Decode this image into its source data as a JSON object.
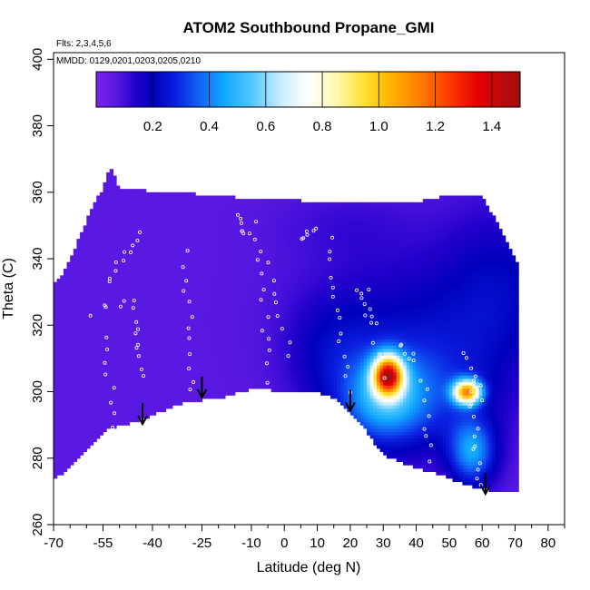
{
  "chart_data": {
    "type": "heatmap",
    "title": "ATOM2 Southbound Propane_GMI",
    "annotations": {
      "flights": "Flts: 2,3,4,5,6",
      "dates": "MMDD: 0129,0201,0203,0205,0210"
    },
    "xlabel": "Latitude (deg N)",
    "ylabel": "Theta (C)",
    "xlim": [
      -70,
      85
    ],
    "ylim": [
      260,
      402
    ],
    "x_major_ticks": [
      -70,
      -55,
      -40,
      -25,
      -10,
      0,
      10,
      20,
      30,
      40,
      50,
      60,
      70,
      80
    ],
    "x_minor_ticks": [
      -65,
      -60,
      -50,
      -45,
      -35,
      -30,
      -20,
      -15,
      -5,
      5,
      15,
      25,
      35,
      45,
      55,
      65,
      75,
      85
    ],
    "x_tick_labels": [
      "-70",
      "-55",
      "-40",
      "-25",
      "-10",
      "0",
      "10",
      "20",
      "30",
      "40",
      "50",
      "60",
      "70",
      "80"
    ],
    "y_ticks": [
      260,
      280,
      300,
      320,
      340,
      360,
      380,
      400
    ],
    "y_tick_labels": [
      "260",
      "280",
      "300",
      "320",
      "340",
      "360",
      "380",
      "400"
    ],
    "colorbar": {
      "range": [
        0,
        1.5
      ],
      "ticks": [
        0.2,
        0.4,
        0.6,
        0.8,
        1.0,
        1.2,
        1.4
      ],
      "tick_labels": [
        "0.2",
        "0.4",
        "0.6",
        "0.8",
        "1.0",
        "1.2",
        "1.4"
      ],
      "stops": [
        [
          0.0,
          "#7e22ee"
        ],
        [
          0.07,
          "#5a19e2"
        ],
        [
          0.14,
          "#2200cc"
        ],
        [
          0.2,
          "#0000bb"
        ],
        [
          0.28,
          "#0b1fe0"
        ],
        [
          0.36,
          "#1060f5"
        ],
        [
          0.45,
          "#0fa8ff"
        ],
        [
          0.55,
          "#52c6ff"
        ],
        [
          0.65,
          "#c8ecff"
        ],
        [
          0.75,
          "#ffffff"
        ],
        [
          0.85,
          "#fff8b0"
        ],
        [
          0.95,
          "#ffe030"
        ],
        [
          1.05,
          "#ffb000"
        ],
        [
          1.15,
          "#ff7a00"
        ],
        [
          1.25,
          "#ff3a00"
        ],
        [
          1.35,
          "#e60000"
        ],
        [
          1.5,
          "#a01010"
        ]
      ]
    },
    "field": {
      "background": 0.07,
      "top_boundary": [
        [
          -70,
          332
        ],
        [
          -67,
          336
        ],
        [
          -64,
          342
        ],
        [
          -61,
          349
        ],
        [
          -58,
          356
        ],
        [
          -55,
          361
        ],
        [
          -53,
          367
        ],
        [
          -52,
          366
        ],
        [
          -50,
          361
        ],
        [
          -35,
          360
        ],
        [
          -20,
          359
        ],
        [
          -10,
          358
        ],
        [
          0,
          358
        ],
        [
          10,
          357
        ],
        [
          20,
          357
        ],
        [
          30,
          357
        ],
        [
          40,
          357
        ],
        [
          50,
          359
        ],
        [
          60,
          359
        ],
        [
          62,
          355
        ],
        [
          65,
          350
        ],
        [
          68,
          344
        ],
        [
          71,
          338
        ]
      ],
      "bottom_boundary": [
        [
          -70,
          274
        ],
        [
          -65,
          277
        ],
        [
          -60,
          283
        ],
        [
          -55,
          288
        ],
        [
          -50,
          290
        ],
        [
          -45,
          291
        ],
        [
          -40,
          293
        ],
        [
          -30,
          297
        ],
        [
          -20,
          298
        ],
        [
          -14,
          300
        ],
        [
          -8,
          301
        ],
        [
          0,
          300
        ],
        [
          10,
          300
        ],
        [
          15,
          298
        ],
        [
          20,
          294
        ],
        [
          25,
          288
        ],
        [
          30,
          281
        ],
        [
          35,
          279
        ],
        [
          40,
          277
        ],
        [
          45,
          276
        ],
        [
          50,
          274
        ],
        [
          55,
          272
        ],
        [
          60,
          271
        ],
        [
          65,
          270
        ],
        [
          71,
          270
        ]
      ],
      "blobs": [
        {
          "lat": 65,
          "theta": 330,
          "sig_lat": 13,
          "sig_theta": 18,
          "amp": 0.13
        },
        {
          "lat": 35,
          "theta": 322,
          "sig_lat": 20,
          "sig_theta": 14,
          "amp": 0.1
        },
        {
          "lat": 14,
          "theta": 312,
          "sig_lat": 9,
          "sig_theta": 11,
          "amp": 0.09
        },
        {
          "lat": 40,
          "theta": 300,
          "sig_lat": 16,
          "sig_theta": 12,
          "amp": 0.2
        },
        {
          "lat": 30,
          "theta": 297,
          "sig_lat": 9,
          "sig_theta": 9,
          "amp": 0.28
        },
        {
          "lat": 31.5,
          "theta": 305,
          "sig_lat": 3.2,
          "sig_theta": 4.2,
          "amp": 1.05
        },
        {
          "lat": 55.5,
          "theta": 300,
          "sig_lat": 3,
          "sig_theta": 2.6,
          "amp": 0.9
        },
        {
          "lat": 57,
          "theta": 282,
          "sig_lat": 5,
          "sig_theta": 7,
          "amp": 0.35
        },
        {
          "lat": 20,
          "theta": 350,
          "sig_lat": 15,
          "sig_theta": 8,
          "amp": 0.04
        }
      ]
    },
    "arrows": [
      {
        "lat": -43,
        "theta": 296
      },
      {
        "lat": -25,
        "theta": 304
      },
      {
        "lat": 20,
        "theta": 300
      },
      {
        "lat": 61,
        "theta": 275
      }
    ],
    "sample_tracks": [
      {
        "from": [
          -53,
          333
        ],
        "to": [
          -44,
          348
        ],
        "n": 10
      },
      {
        "from": [
          -58,
          324
        ],
        "to": [
          -46,
          328
        ],
        "n": 6
      },
      {
        "from": [
          -45,
          324
        ],
        "to": [
          -43,
          305
        ],
        "n": 9
      },
      {
        "from": [
          -30,
          342
        ],
        "to": [
          -28,
          300
        ],
        "n": 12
      },
      {
        "from": [
          -15,
          352
        ],
        "to": [
          -11,
          347
        ],
        "n": 7
      },
      {
        "from": [
          -8,
          350
        ],
        "to": [
          -4,
          300
        ],
        "n": 14
      },
      {
        "from": [
          -5,
          338
        ],
        "to": [
          2,
          312
        ],
        "n": 8
      },
      {
        "from": [
          5,
          347
        ],
        "to": [
          10,
          348
        ],
        "n": 6
      },
      {
        "from": [
          14,
          346
        ],
        "to": [
          19,
          300
        ],
        "n": 14
      },
      {
        "from": [
          22,
          330
        ],
        "to": [
          26,
          321
        ],
        "n": 7
      },
      {
        "from": [
          25,
          330
        ],
        "to": [
          30,
          305
        ],
        "n": 6
      },
      {
        "from": [
          35,
          315
        ],
        "to": [
          40,
          309
        ],
        "n": 6
      },
      {
        "from": [
          55,
          311
        ],
        "to": [
          60,
          298
        ],
        "n": 8
      },
      {
        "from": [
          57,
          300
        ],
        "to": [
          59,
          272
        ],
        "n": 12
      },
      {
        "from": [
          42,
          303
        ],
        "to": [
          45,
          276
        ],
        "n": 9
      },
      {
        "from": [
          -55,
          316
        ],
        "to": [
          -50,
          282
        ],
        "n": 10
      }
    ]
  }
}
